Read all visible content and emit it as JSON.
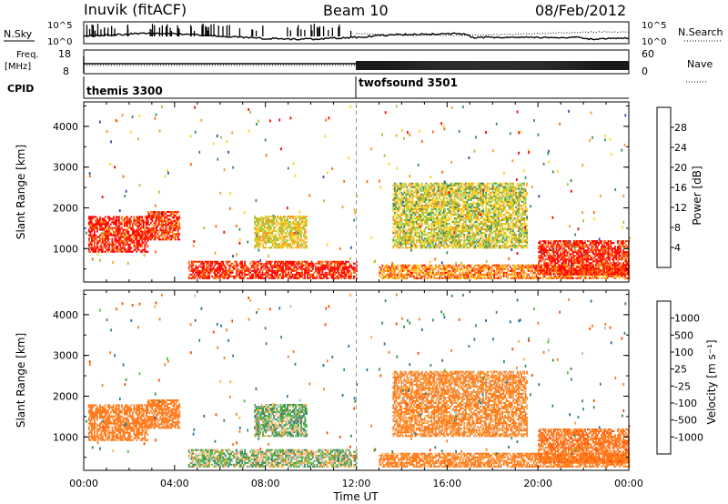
{
  "header": {
    "station": "Inuvik (fitACF)",
    "beam": "Beam 10",
    "date": "08/Feb/2012"
  },
  "top_panels": {
    "nsky_label": "N.Sky",
    "nsearch_label": "N.Search",
    "noise_ticks": [
      "10^5",
      "10^0"
    ],
    "freq_label": "Freq.",
    "freq_unit": "[MHz]",
    "freq_ticks": [
      "18",
      "8"
    ],
    "nave_label": "Nave",
    "nave_ticks": [
      "60",
      "0"
    ],
    "cpid_label": "CPID",
    "cpid_segments": [
      {
        "name": "themis 3300",
        "start_hour": 0
      },
      {
        "name": "twofsound 3501",
        "start_hour": 12
      }
    ]
  },
  "power_scale": {
    "title": "Power [dB]",
    "ticks": [
      "28",
      "24",
      "20",
      "16",
      "12",
      "8",
      "4"
    ],
    "colors": [
      "#ff0000",
      "#ff6a00",
      "#ff9a1a",
      "#ffd21e",
      "#9bc83a",
      "#3c8c5c",
      "#2c4eb0",
      "#0000ff"
    ]
  },
  "velocity_scale": {
    "title": "Velocity [m s⁻¹]",
    "ticks": [
      "1000",
      "500",
      "100",
      "25",
      "-25",
      "-100",
      "-500",
      "-1000"
    ],
    "colors": [
      "#1e3ca8",
      "#2a6e9c",
      "#3a8a5a",
      "#4fbf3a",
      "#bdbdbd",
      "#ffaa44",
      "#ff7a1a",
      "#ff4a00",
      "#ff0000"
    ]
  },
  "x_axis": {
    "label": "Time UT",
    "ticks": [
      "00:00",
      "04:00",
      "08:00",
      "12:00",
      "16:00",
      "20:00",
      "00:00"
    ]
  },
  "y_axis": {
    "label": "Slant Range [km]",
    "ticks": [
      "4000",
      "3000",
      "2000",
      "1000"
    ]
  },
  "chart_data": {
    "type": "heatmap",
    "title": "Inuvik (fitACF) Beam 10 08/Feb/2012",
    "xlabel": "Time UT",
    "ylabel": "Slant Range [km]",
    "xlim_hours": [
      0,
      24
    ],
    "ylim_km": [
      180,
      4600
    ],
    "panels": [
      {
        "name": "Power [dB]",
        "range": [
          0,
          30
        ]
      },
      {
        "name": "Velocity [m s⁻¹]",
        "range": [
          -1000,
          1000
        ]
      }
    ],
    "echo_regions": [
      {
        "t0": 0.2,
        "t1": 2.8,
        "r0": 900,
        "r1": 1800,
        "power": 28,
        "velocity": -300
      },
      {
        "t0": 2.8,
        "t1": 4.2,
        "r0": 1200,
        "r1": 1900,
        "power": 26,
        "velocity": -300
      },
      {
        "t0": 4.6,
        "t1": 12.0,
        "r0": 250,
        "r1": 700,
        "power": 28,
        "velocity": 40
      },
      {
        "t0": 7.5,
        "t1": 9.8,
        "r0": 1000,
        "r1": 1800,
        "power": 16,
        "velocity": 60
      },
      {
        "t0": 13.6,
        "t1": 19.5,
        "r0": 1000,
        "r1": 2600,
        "power": 14,
        "velocity": -150
      },
      {
        "t0": 13.0,
        "t1": 24.0,
        "r0": 250,
        "r1": 600,
        "power": 22,
        "velocity": -200
      },
      {
        "t0": 20.0,
        "t1": 24.0,
        "r0": 350,
        "r1": 1200,
        "power": 28,
        "velocity": -400
      }
    ],
    "cpid_change_hour": 12,
    "frequency_mhz": [
      10.5,
      11.0
    ]
  }
}
